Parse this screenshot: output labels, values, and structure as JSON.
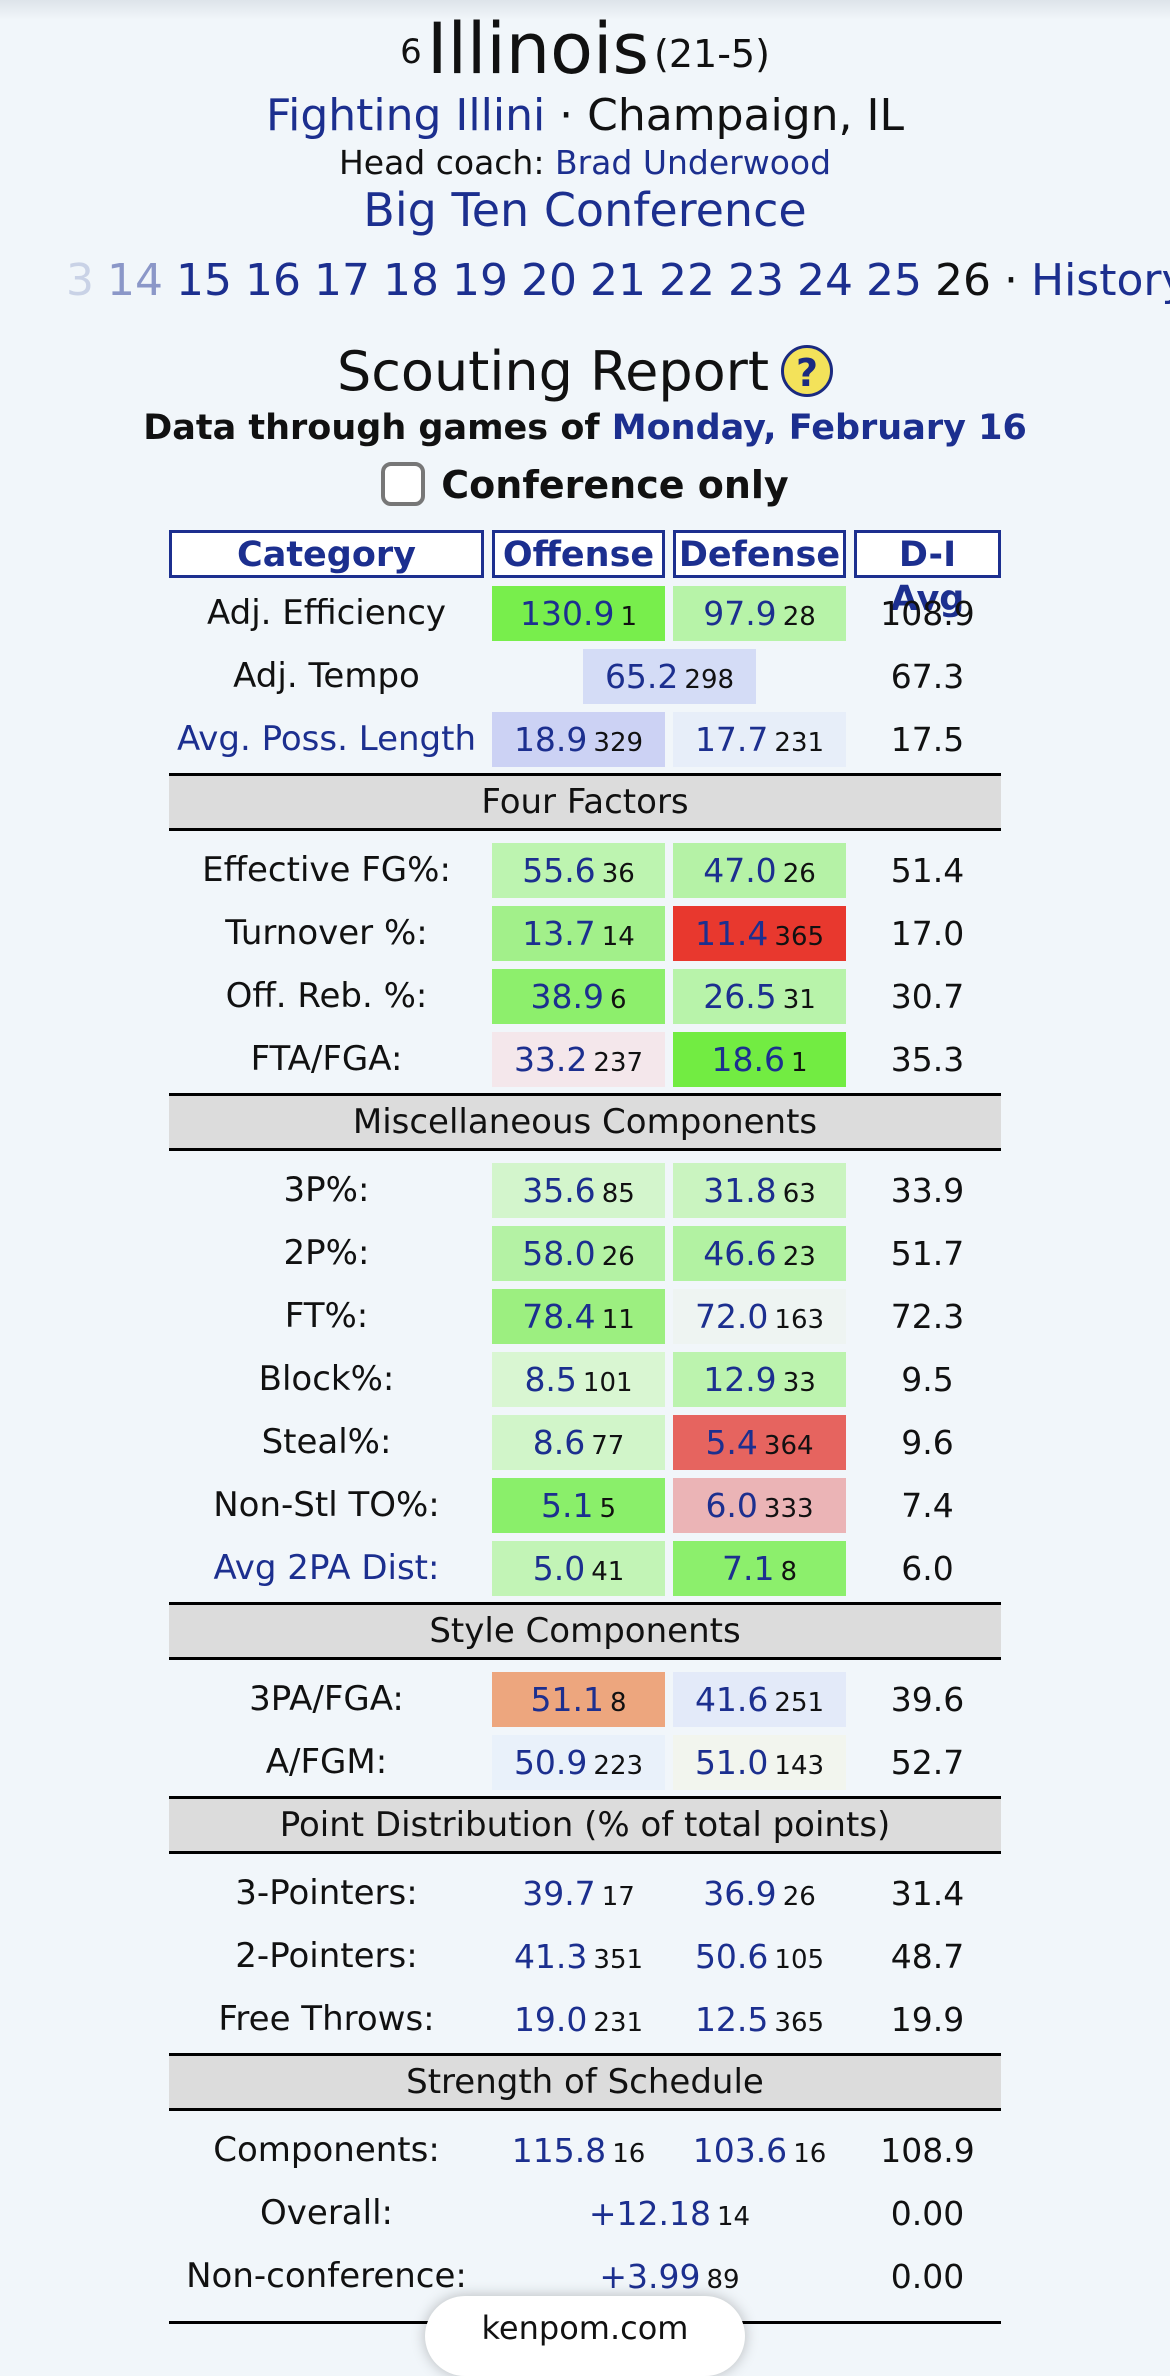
{
  "team": {
    "seed": "6",
    "name": "Illinois",
    "record": "(21-5)",
    "nickname": "Fighting Illini",
    "location_sep": " · ",
    "location": "Champaign, IL",
    "coach_label": "Head coach: ",
    "coach": "Brad Underwood",
    "conference": "Big Ten Conference"
  },
  "years": [
    {
      "label": "3",
      "style": "fade1"
    },
    {
      "label": "14",
      "style": "fade2"
    },
    {
      "label": "15",
      "style": ""
    },
    {
      "label": "16",
      "style": ""
    },
    {
      "label": "17",
      "style": ""
    },
    {
      "label": "18",
      "style": ""
    },
    {
      "label": "19",
      "style": ""
    },
    {
      "label": "20",
      "style": ""
    },
    {
      "label": "21",
      "style": ""
    },
    {
      "label": "22",
      "style": ""
    },
    {
      "label": "23",
      "style": ""
    },
    {
      "label": "24",
      "style": ""
    },
    {
      "label": "25",
      "style": ""
    },
    {
      "label": "26",
      "style": "cur"
    }
  ],
  "years_sep": "·",
  "history_label": "History",
  "report": {
    "title": "Scouting Report",
    "help_glyph": "?",
    "data_through_label": "Data through games of ",
    "data_through_date": "Monday, February 16",
    "conference_only_label": "Conference only"
  },
  "headers": {
    "category": "Category",
    "offense": "Offense",
    "defense": "Defense",
    "avg": "D-I Avg"
  },
  "rows": [
    {
      "type": "row",
      "label": "Adj. Efficiency",
      "off": {
        "v": "130.9",
        "r": "1",
        "bg": "#78ee4c"
      },
      "def": {
        "v": "97.9",
        "r": "28",
        "bg": "#b7f3a8"
      },
      "avg": "108.9"
    },
    {
      "type": "span",
      "label": "Adj. Tempo",
      "val": {
        "v": "65.2",
        "r": "298",
        "bg": "#d4dcf6"
      },
      "avg": "67.3"
    },
    {
      "type": "row",
      "label": "Avg. Poss. Length",
      "link": true,
      "off": {
        "v": "18.9",
        "r": "329",
        "bg": "#ccd2f4"
      },
      "def": {
        "v": "17.7",
        "r": "231",
        "bg": "#e7eef9"
      },
      "avg": "17.5"
    },
    {
      "type": "section",
      "label": "Four Factors"
    },
    {
      "type": "row",
      "label": "Effective FG%:",
      "off": {
        "v": "55.6",
        "r": "36",
        "bg": "#bdf4b0"
      },
      "def": {
        "v": "47.0",
        "r": "26",
        "bg": "#b5f2a6"
      },
      "avg": "51.4"
    },
    {
      "type": "row",
      "label": "Turnover %:",
      "off": {
        "v": "13.7",
        "r": "14",
        "bg": "#a2f08a"
      },
      "def": {
        "v": "11.4",
        "r": "365",
        "bg": "#e8382e"
      },
      "avg": "17.0"
    },
    {
      "type": "row",
      "label": "Off. Reb. %:",
      "off": {
        "v": "38.9",
        "r": "6",
        "bg": "#8def6c"
      },
      "def": {
        "v": "26.5",
        "r": "31",
        "bg": "#b8f3aa"
      },
      "avg": "30.7"
    },
    {
      "type": "row",
      "label": "FTA/FGA:",
      "off": {
        "v": "33.2",
        "r": "237",
        "bg": "#f4e7eb"
      },
      "def": {
        "v": "18.6",
        "r": "1",
        "bg": "#72ec42"
      },
      "avg": "35.3"
    },
    {
      "type": "section",
      "label": "Miscellaneous Components"
    },
    {
      "type": "row",
      "label": "3P%:",
      "off": {
        "v": "35.6",
        "r": "85",
        "bg": "#d3f5cc"
      },
      "def": {
        "v": "31.8",
        "r": "63",
        "bg": "#caf4c0"
      },
      "avg": "33.9"
    },
    {
      "type": "row",
      "label": "2P%:",
      "off": {
        "v": "58.0",
        "r": "26",
        "bg": "#b4f2a4"
      },
      "def": {
        "v": "46.6",
        "r": "23",
        "bg": "#b2f2a2"
      },
      "avg": "51.7"
    },
    {
      "type": "row",
      "label": "FT%:",
      "off": {
        "v": "78.4",
        "r": "11",
        "bg": "#9cef80"
      },
      "def": {
        "v": "72.0",
        "r": "163",
        "bg": "#eef4f2"
      },
      "avg": "72.3"
    },
    {
      "type": "row",
      "label": "Block%:",
      "off": {
        "v": "8.5",
        "r": "101",
        "bg": "#d9f6d2"
      },
      "def": {
        "v": "12.9",
        "r": "33",
        "bg": "#bcf3ae"
      },
      "avg": "9.5"
    },
    {
      "type": "row",
      "label": "Steal%:",
      "off": {
        "v": "8.6",
        "r": "77",
        "bg": "#d1f5c9"
      },
      "def": {
        "v": "5.4",
        "r": "364",
        "bg": "#e6645f"
      },
      "avg": "9.6"
    },
    {
      "type": "row",
      "label": "Non-Stl TO%:",
      "off": {
        "v": "5.1",
        "r": "5",
        "bg": "#8aef6a"
      },
      "def": {
        "v": "6.0",
        "r": "333",
        "bg": "#ebb4b6"
      },
      "avg": "7.4"
    },
    {
      "type": "row",
      "label": "Avg 2PA Dist:",
      "link": true,
      "off": {
        "v": "5.0",
        "r": "41",
        "bg": "#c2f4b6"
      },
      "def": {
        "v": "7.1",
        "r": "8",
        "bg": "#8cef6c"
      },
      "avg": "6.0"
    },
    {
      "type": "section",
      "label": "Style Components"
    },
    {
      "type": "row",
      "label": "3PA/FGA:",
      "off": {
        "v": "51.1",
        "r": "8",
        "bg": "#eda67e"
      },
      "def": {
        "v": "41.6",
        "r": "251",
        "bg": "#e3eaf9"
      },
      "avg": "39.6"
    },
    {
      "type": "row",
      "label": "A/FGM:",
      "off": {
        "v": "50.9",
        "r": "223",
        "bg": "#e9f1fa"
      },
      "def": {
        "v": "51.0",
        "r": "143",
        "bg": "#f2f5ee"
      },
      "avg": "52.7"
    },
    {
      "type": "section",
      "label": "Point Distribution (% of total points)"
    },
    {
      "type": "row",
      "label": "3-Pointers:",
      "off": {
        "v": "39.7",
        "r": "17",
        "bg": ""
      },
      "def": {
        "v": "36.9",
        "r": "26",
        "bg": ""
      },
      "avg": "31.4"
    },
    {
      "type": "row",
      "label": "2-Pointers:",
      "off": {
        "v": "41.3",
        "r": "351",
        "bg": ""
      },
      "def": {
        "v": "50.6",
        "r": "105",
        "bg": ""
      },
      "avg": "48.7"
    },
    {
      "type": "row",
      "label": "Free Throws:",
      "off": {
        "v": "19.0",
        "r": "231",
        "bg": ""
      },
      "def": {
        "v": "12.5",
        "r": "365",
        "bg": ""
      },
      "avg": "19.9"
    },
    {
      "type": "section",
      "label": "Strength of Schedule"
    },
    {
      "type": "row",
      "label": "Components:",
      "off": {
        "v": "115.8",
        "r": "16",
        "bg": ""
      },
      "def": {
        "v": "103.6",
        "r": "16",
        "bg": ""
      },
      "avg": "108.9"
    },
    {
      "type": "span",
      "label": "Overall:",
      "val": {
        "v": "+12.18",
        "r": "14",
        "bg": ""
      },
      "avg": "0.00"
    },
    {
      "type": "span",
      "label": "Non-conference:",
      "val": {
        "v": "+3.99",
        "r": "89",
        "bg": ""
      },
      "avg": "0.00"
    }
  ],
  "footer": {
    "site": "kenpom.com"
  }
}
